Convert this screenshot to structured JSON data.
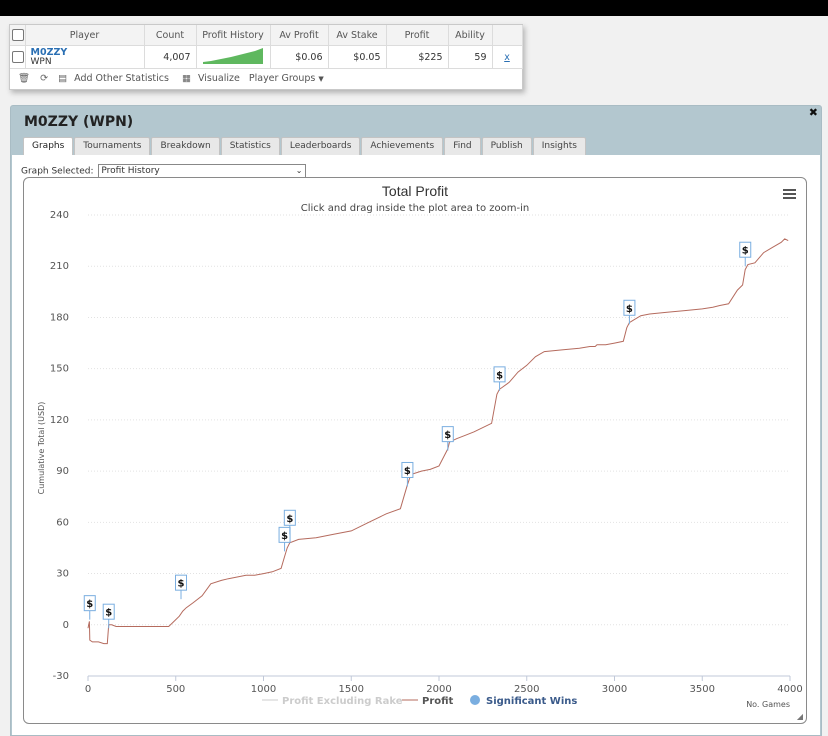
{
  "player_table": {
    "headers": [
      "Player",
      "Count",
      "Profit History",
      "Av Profit",
      "Av Stake",
      "Profit",
      "Ability"
    ],
    "row": {
      "player_name": "M0ZZY",
      "network": "WPN",
      "count": "4,007",
      "av_profit": "$0.06",
      "av_stake": "$0.05",
      "profit": "$225",
      "ability": "59",
      "remove_label": "x"
    },
    "toolbar": {
      "add_stats_label": "Add Other Statistics",
      "visualize_label": "Visualize",
      "player_groups_label": "Player Groups"
    }
  },
  "panel": {
    "title": "M0ZZY (WPN)",
    "tabs": [
      "Graphs",
      "Tournaments",
      "Breakdown",
      "Statistics",
      "Leaderboards",
      "Achievements",
      "Find",
      "Publish",
      "Insights"
    ],
    "active_tab": "Graphs",
    "graph_selected_label": "Graph Selected:",
    "graph_selected_value": "Profit History"
  },
  "chart_data": {
    "type": "line",
    "title": "Total Profit",
    "subtitle": "Click and drag inside the plot area to zoom-in",
    "xlabel": "No. Games",
    "ylabel": "Cumulative Total (USD)",
    "xlim": [
      0,
      4000
    ],
    "ylim": [
      -30,
      240
    ],
    "xticks": [
      0,
      500,
      1000,
      1500,
      2000,
      2500,
      3000,
      3500,
      4000
    ],
    "yticks": [
      -30,
      0,
      30,
      60,
      90,
      120,
      150,
      180,
      210,
      240
    ],
    "grid": "horizontal dotted",
    "legend_position": "bottom-center",
    "legend": [
      {
        "name": "Profit Excluding Rake",
        "color": "#cccccc",
        "kind": "line"
      },
      {
        "name": "Profit",
        "color": "#b56b5e",
        "kind": "line"
      },
      {
        "name": "Significant Wins",
        "color": "#7aaee0",
        "kind": "marker"
      }
    ],
    "series": [
      {
        "name": "Profit",
        "color": "#b56b5e",
        "x": [
          0,
          8,
          10,
          25,
          60,
          90,
          110,
          118,
          122,
          135,
          160,
          200,
          300,
          400,
          460,
          490,
          520,
          540,
          560,
          600,
          650,
          700,
          760,
          800,
          900,
          950,
          1000,
          1050,
          1100,
          1120,
          1135,
          1150,
          1200,
          1300,
          1400,
          1500,
          1600,
          1700,
          1780,
          1800,
          1820,
          1840,
          1900,
          1950,
          2000,
          2050,
          2060,
          2100,
          2150,
          2200,
          2300,
          2330,
          2345,
          2360,
          2400,
          2450,
          2500,
          2550,
          2600,
          2700,
          2800,
          2860,
          2890,
          2900,
          2950,
          3000,
          3050,
          3070,
          3085,
          3100,
          3150,
          3200,
          3300,
          3400,
          3500,
          3560,
          3600,
          3650,
          3700,
          3730,
          3745,
          3760,
          3800,
          3850,
          3900,
          3950,
          3970,
          3990
        ],
        "y": [
          -2,
          2,
          -9,
          -10,
          -10,
          -11,
          -11,
          0,
          0,
          0,
          -1,
          -1,
          -1,
          -1,
          -1,
          2,
          5,
          8,
          10,
          13,
          17,
          24,
          26,
          27,
          29,
          29,
          30,
          31,
          33,
          40,
          45,
          48,
          50,
          51,
          53,
          55,
          60,
          65,
          68,
          75,
          82,
          88,
          90,
          91,
          93,
          103,
          107,
          109,
          111,
          113,
          118,
          135,
          138,
          139,
          142,
          148,
          152,
          157,
          160,
          161,
          162,
          163,
          163,
          164,
          164,
          165,
          166,
          174,
          177,
          178,
          181,
          182,
          183,
          184,
          185,
          186,
          187,
          188,
          196,
          199,
          208,
          211,
          212,
          218,
          221,
          224,
          226,
          225
        ]
      }
    ],
    "significant_wins": [
      {
        "x": 10,
        "y": 3,
        "label": "$"
      },
      {
        "x": 118,
        "y": -2,
        "label": "$"
      },
      {
        "x": 530,
        "y": 15,
        "label": "$"
      },
      {
        "x": 1120,
        "y": 43,
        "label": "$"
      },
      {
        "x": 1150,
        "y": 53,
        "label": "$"
      },
      {
        "x": 1820,
        "y": 81,
        "label": "$"
      },
      {
        "x": 2050,
        "y": 102,
        "label": "$"
      },
      {
        "x": 2345,
        "y": 137,
        "label": "$"
      },
      {
        "x": 3085,
        "y": 176,
        "label": "$"
      },
      {
        "x": 3745,
        "y": 210,
        "label": "$"
      }
    ]
  }
}
